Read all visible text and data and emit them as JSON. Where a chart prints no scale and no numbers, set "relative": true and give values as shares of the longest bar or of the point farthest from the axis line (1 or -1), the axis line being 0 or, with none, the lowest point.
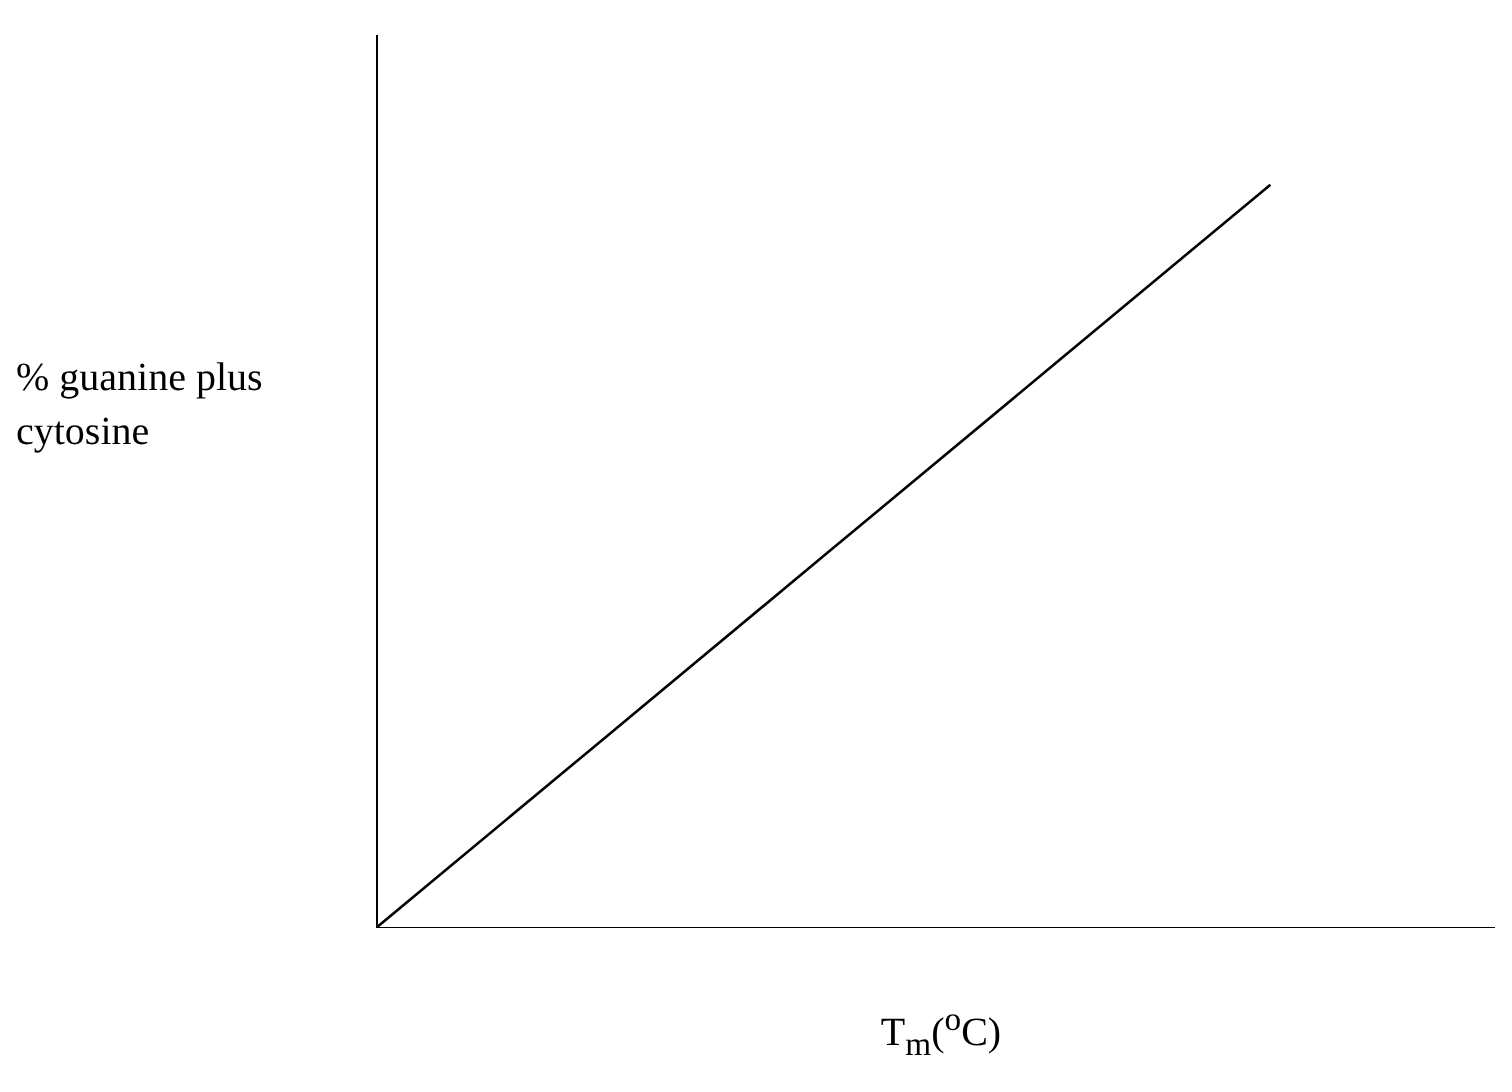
{
  "chart_data": {
    "type": "line",
    "relative": true,
    "xlabel": "T$_{m}$($^{o}$C)",
    "ylabel": "% guanine plus cytosine",
    "categories": [
      null,
      null,
      null,
      null,
      null,
      null
    ],
    "series": [
      {
        "color": "#000000",
        "values": [
          0,
          0.25,
          0.5,
          0.75,
          1,
          null
        ]
      }
    ]
  }
}
